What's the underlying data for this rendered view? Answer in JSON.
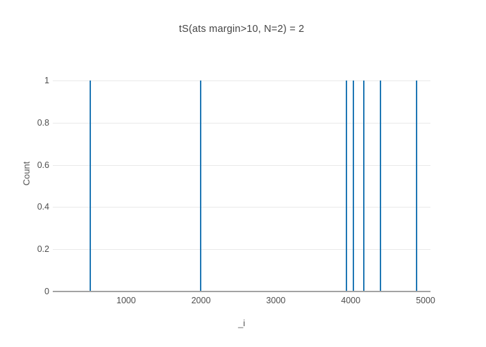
{
  "chart_data": {
    "type": "bar",
    "subtype": "histogram-of-events",
    "title": "tS(ats margin>10, N=2) = 2",
    "xlabel": "_i",
    "ylabel": "Count",
    "x": [
      517,
      1997,
      3946,
      4039,
      4172,
      4401,
      4878
    ],
    "values": [
      1,
      1,
      1,
      1,
      1,
      1,
      1
    ],
    "xlim": [
      20,
      5065
    ],
    "ylim": [
      0,
      1
    ],
    "x_ticks": [
      {
        "v": 1000,
        "label": "1000"
      },
      {
        "v": 2000,
        "label": "2000"
      },
      {
        "v": 3000,
        "label": "3000"
      },
      {
        "v": 4000,
        "label": "4000"
      },
      {
        "v": 5000,
        "label": "5000"
      }
    ],
    "y_ticks": [
      {
        "v": 0,
        "label": "0"
      },
      {
        "v": 0.2,
        "label": "0.2"
      },
      {
        "v": 0.4,
        "label": "0.4"
      },
      {
        "v": 0.6,
        "label": "0.6"
      },
      {
        "v": 0.8,
        "label": "0.8"
      },
      {
        "v": 1,
        "label": "1"
      }
    ],
    "grid": true,
    "legend_visible": false,
    "colors": {
      "bar": "#1f77b4",
      "grid": "#e9e9e9",
      "axis_line": "#a3a3a3",
      "tick_text": "#4d4d4d",
      "title_text": "#444444",
      "axis_title_text": "#555555",
      "background": "#ffffff"
    }
  }
}
